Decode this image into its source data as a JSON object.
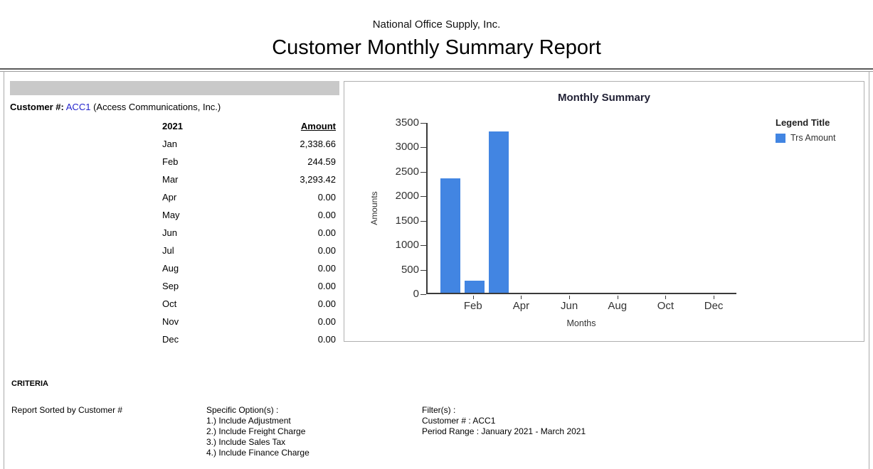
{
  "header": {
    "company": "National Office Supply, Inc.",
    "title": "Customer Monthly Summary Report"
  },
  "customer": {
    "label": "Customer #:",
    "code": "ACC1",
    "name": "(Access Communications, Inc.)"
  },
  "table": {
    "year": "2021",
    "amount_header": "Amount",
    "rows": [
      {
        "month": "Jan",
        "amount": "2,338.66"
      },
      {
        "month": "Feb",
        "amount": "244.59"
      },
      {
        "month": "Mar",
        "amount": "3,293.42"
      },
      {
        "month": "Apr",
        "amount": "0.00"
      },
      {
        "month": "May",
        "amount": "0.00"
      },
      {
        "month": "Jun",
        "amount": "0.00"
      },
      {
        "month": "Jul",
        "amount": "0.00"
      },
      {
        "month": "Aug",
        "amount": "0.00"
      },
      {
        "month": "Sep",
        "amount": "0.00"
      },
      {
        "month": "Oct",
        "amount": "0.00"
      },
      {
        "month": "Nov",
        "amount": "0.00"
      },
      {
        "month": "Dec",
        "amount": "0.00"
      }
    ]
  },
  "chart_data": {
    "type": "bar",
    "title": "Monthly Summary",
    "xlabel": "Months",
    "ylabel": "Amounts",
    "categories": [
      "Jan",
      "Feb",
      "Mar",
      "Apr",
      "May",
      "Jun",
      "Jul",
      "Aug",
      "Sep",
      "Oct",
      "Nov",
      "Dec"
    ],
    "values": [
      2338.66,
      244.59,
      3293.42,
      0,
      0,
      0,
      0,
      0,
      0,
      0,
      0,
      0
    ],
    "ylim": [
      0,
      3500
    ],
    "ytick_step": 500,
    "x_tick_labels": [
      "Feb",
      "Apr",
      "Jun",
      "Aug",
      "Oct",
      "Dec"
    ],
    "grid": false,
    "legend": {
      "title": "Legend Title",
      "series": "Trs Amount",
      "position": "right"
    }
  },
  "colors": {
    "bar": "#4285e2",
    "link": "#2222cc",
    "gray_band": "#c9c9c9"
  },
  "criteria": {
    "heading": "CRITERIA",
    "sorted": "Report Sorted by Customer #",
    "options_label": "Specific Option(s) :",
    "options": [
      "1.) Include Adjustment",
      "2.) Include Freight Charge",
      "3.) Include Sales Tax",
      "4.) Include Finance Charge"
    ],
    "filters_label": "Filter(s) :",
    "filters": [
      "Customer # : ACC1",
      "Period Range : January 2021 - March 2021"
    ]
  }
}
